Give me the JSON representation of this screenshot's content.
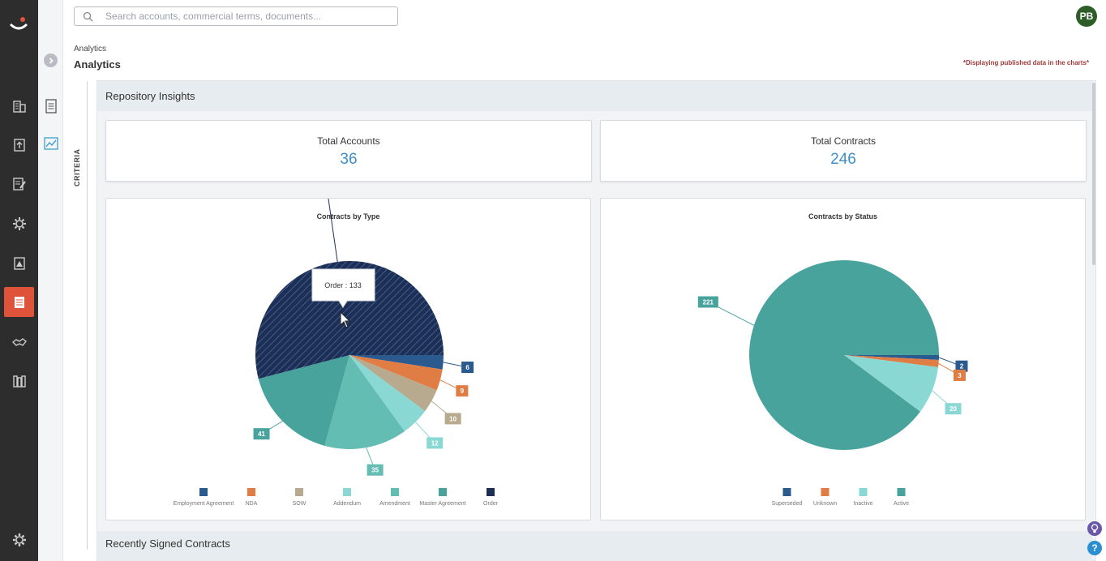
{
  "search": {
    "placeholder": "Search accounts, commercial terms, documents..."
  },
  "user": {
    "initials": "PB"
  },
  "breadcrumb": "Analytics",
  "page_title": "Analytics",
  "published_note": "*Displaying published data in the charts*",
  "criteria_label": "CRITERIA",
  "section_title": "Repository Insights",
  "stats": {
    "accounts_label": "Total Accounts",
    "accounts_value": "36",
    "contracts_label": "Total Contracts",
    "contracts_value": "246"
  },
  "recent_title": "Recently Signed Contracts",
  "nav_icons": [
    "accounts-icon",
    "upload-icon",
    "edit-document-icon",
    "settings-network-icon",
    "warning-document-icon",
    "contracts-icon",
    "handshake-icon",
    "library-icon",
    "gear-icon"
  ],
  "colors": {
    "accent": "#e0533b",
    "value_blue": "#3d8fc7",
    "navy": "#2b4c7e",
    "orange": "#e07d45",
    "tan": "#b7aa8e",
    "light_cyan": "#8ad8d4",
    "mid_teal": "#63bdb2",
    "teal": "#49a39d",
    "dark_navy": "#1e2f55"
  },
  "chart_data": [
    {
      "type": "pie",
      "title": "Contracts by Type",
      "categories": [
        "Employment Agreement",
        "NDA",
        "SOW",
        "Addendum",
        "Amendment",
        "Master Agreement",
        "Order"
      ],
      "values": [
        6,
        9,
        10,
        12,
        35,
        41,
        133
      ],
      "colors": [
        "#2b5a8f",
        "#e07d45",
        "#b7aa8e",
        "#8ad8d4",
        "#63bdb2",
        "#49a39d",
        "#1e2f55"
      ],
      "tooltip": "Order : 133",
      "legend": "bottom"
    },
    {
      "type": "pie",
      "title": "Contracts by Status",
      "categories": [
        "Superseded",
        "Unknown",
        "Inactive",
        "Active"
      ],
      "values": [
        2,
        3,
        20,
        221
      ],
      "colors": [
        "#2b5a8f",
        "#e07d45",
        "#8ad8d4",
        "#49a39d"
      ],
      "legend": "bottom"
    }
  ]
}
